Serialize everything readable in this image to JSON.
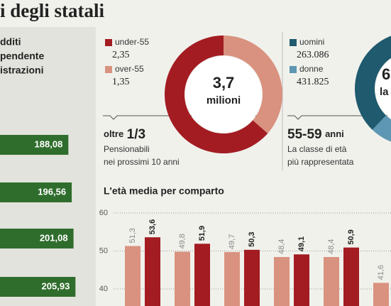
{
  "header": {
    "title": "i degli statali"
  },
  "left_panel": {
    "lines": [
      "dditi",
      "pendente",
      "istrazioni"
    ]
  },
  "chart_data": [
    {
      "type": "pie",
      "categories": [
        "under-55",
        "over-55"
      ],
      "values": [
        2.35,
        1.35
      ],
      "value_labels": [
        "2,35",
        "1,35"
      ],
      "colors": [
        "#a31c22",
        "#d9927f"
      ],
      "center_labels": [
        "3,7",
        "milioni"
      ],
      "highlight_lead": "oltre",
      "highlight": "1/3",
      "notes": [
        "Pensionabili",
        "nei prossimi 10 anni"
      ]
    },
    {
      "type": "pie",
      "categories": [
        "uomini",
        "donne"
      ],
      "values": [
        263086,
        431825
      ],
      "value_labels": [
        "263.086",
        "431.825"
      ],
      "colors": [
        "#1f5a6e",
        "#5e97b3"
      ],
      "center_labels": [
        "6",
        "la"
      ],
      "highlight": "55-59",
      "highlight_tail": "anni",
      "notes": [
        "La classe di età",
        "più rappresentata"
      ]
    },
    {
      "type": "bar",
      "title": "L'età media per comparto",
      "series": [
        {
          "color": "#d9927f",
          "values": [
            51.3,
            49.8,
            49.7,
            48.4,
            48.4,
            41.6
          ],
          "value_labels": [
            "51,3",
            "49,8",
            "49,7",
            "48,4",
            "48,4",
            "41,6"
          ]
        },
        {
          "color": "#a31c22",
          "values": [
            53.6,
            51.9,
            50.3,
            49.1,
            50.9,
            null
          ],
          "value_labels": [
            "53,6",
            "51,9",
            "50,3",
            "49,1",
            "50,9",
            null
          ]
        }
      ],
      "ylim": [
        35.5,
        60
      ],
      "yticks": [
        40,
        50,
        60
      ],
      "grid": true
    },
    {
      "type": "hbar",
      "values": [
        188.08,
        196.56,
        201.08,
        205.93
      ],
      "value_labels": [
        "188,08",
        "196,56",
        "201,08",
        "205,93"
      ],
      "color": "#2f6d2c"
    }
  ]
}
